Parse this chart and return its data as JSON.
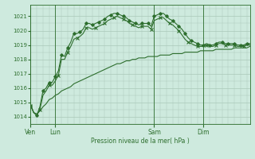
{
  "title": "",
  "xlabel": "Pression niveau de la mer( hPa )",
  "bg_color": "#ceeade",
  "grid_color": "#aac8b8",
  "line_color": "#2d6e2d",
  "ylim": [
    1013.5,
    1021.8
  ],
  "yticks": [
    1014,
    1015,
    1016,
    1017,
    1018,
    1019,
    1020,
    1021
  ],
  "xtick_labels": [
    "Ven",
    "Lun",
    "Sam",
    "Dim"
  ],
  "xtick_positions": [
    0,
    8,
    40,
    56
  ],
  "total_points": 72,
  "series1": [
    1014.8,
    1014.3,
    1014.1,
    1014.7,
    1015.8,
    1016.0,
    1016.4,
    1016.4,
    1016.8,
    1017.2,
    1018.3,
    1018.2,
    1018.8,
    1019.2,
    1019.8,
    1019.8,
    1019.9,
    1020.1,
    1020.5,
    1020.5,
    1020.4,
    1020.5,
    1020.6,
    1020.7,
    1020.8,
    1021.0,
    1021.1,
    1021.2,
    1021.2,
    1021.1,
    1021.0,
    1020.9,
    1020.7,
    1020.6,
    1020.5,
    1020.4,
    1020.5,
    1020.5,
    1020.5,
    1020.3,
    1021.0,
    1021.1,
    1021.2,
    1021.2,
    1021.0,
    1020.8,
    1020.7,
    1020.5,
    1020.3,
    1020.1,
    1019.8,
    1019.5,
    1019.3,
    1019.2,
    1019.1,
    1019.0,
    1019.0,
    1019.1,
    1019.0,
    1019.0,
    1019.1,
    1019.2,
    1019.2,
    1019.1,
    1019.1,
    1019.1,
    1019.1,
    1019.0,
    1019.0,
    1019.0,
    1019.1,
    1019.1
  ],
  "series2": [
    1014.8,
    1014.3,
    1014.1,
    1014.5,
    1015.5,
    1015.8,
    1016.2,
    1016.2,
    1016.5,
    1016.9,
    1018.0,
    1018.0,
    1018.5,
    1018.9,
    1019.4,
    1019.5,
    1019.6,
    1019.8,
    1020.2,
    1020.2,
    1020.1,
    1020.2,
    1020.3,
    1020.4,
    1020.5,
    1020.7,
    1020.8,
    1020.9,
    1021.0,
    1020.9,
    1020.8,
    1020.7,
    1020.5,
    1020.4,
    1020.3,
    1020.2,
    1020.3,
    1020.3,
    1020.3,
    1020.1,
    1020.7,
    1020.8,
    1020.9,
    1020.9,
    1020.7,
    1020.5,
    1020.4,
    1020.2,
    1020.0,
    1019.7,
    1019.4,
    1019.2,
    1019.1,
    1019.0,
    1018.9,
    1018.9,
    1018.9,
    1019.0,
    1018.9,
    1018.9,
    1019.0,
    1019.1,
    1019.1,
    1019.0,
    1019.0,
    1019.0,
    1019.0,
    1018.9,
    1018.9,
    1018.9,
    1019.0,
    1019.0
  ],
  "series3": [
    1014.8,
    1014.3,
    1014.2,
    1014.4,
    1014.7,
    1014.9,
    1015.2,
    1015.3,
    1015.5,
    1015.6,
    1015.8,
    1015.9,
    1016.0,
    1016.1,
    1016.3,
    1016.4,
    1016.5,
    1016.6,
    1016.7,
    1016.8,
    1016.9,
    1017.0,
    1017.1,
    1017.2,
    1017.3,
    1017.4,
    1017.5,
    1017.6,
    1017.7,
    1017.7,
    1017.8,
    1017.9,
    1017.9,
    1018.0,
    1018.0,
    1018.1,
    1018.1,
    1018.1,
    1018.2,
    1018.2,
    1018.2,
    1018.2,
    1018.3,
    1018.3,
    1018.3,
    1018.3,
    1018.4,
    1018.4,
    1018.4,
    1018.4,
    1018.5,
    1018.5,
    1018.5,
    1018.5,
    1018.5,
    1018.6,
    1018.6,
    1018.6,
    1018.6,
    1018.6,
    1018.7,
    1018.7,
    1018.7,
    1018.7,
    1018.7,
    1018.7,
    1018.8,
    1018.8,
    1018.8,
    1018.8,
    1018.8,
    1018.9
  ],
  "vline_positions": [
    0,
    8,
    40,
    56
  ]
}
